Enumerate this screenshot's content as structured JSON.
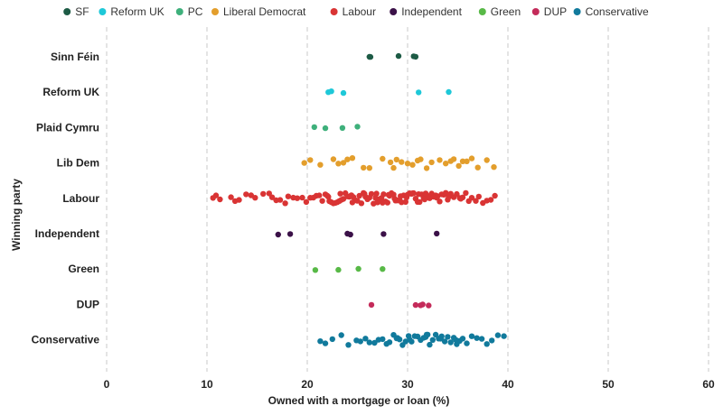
{
  "chart_data": {
    "type": "scatter",
    "xlabel": "Owned with a mortgage or loan (%)",
    "ylabel": "Winning party",
    "xlim": [
      0,
      60
    ],
    "xticks": [
      0,
      10,
      20,
      30,
      40,
      50,
      60
    ],
    "grid": "vertical dashed",
    "legend_position": "top",
    "categories": [
      "Sinn Féin",
      "Reform UK",
      "Plaid Cymru",
      "Lib Dem",
      "Labour",
      "Independent",
      "Green",
      "DUP",
      "Conservative"
    ],
    "series": [
      {
        "name": "SF",
        "category": "Sinn Féin",
        "color": "#1d5b45",
        "values": [
          26.2,
          26.3,
          29.1,
          30.6,
          30.8
        ]
      },
      {
        "name": "Reform UK",
        "category": "Reform UK",
        "color": "#1ec8d8",
        "values": [
          22.1,
          22.4,
          23.6,
          31.1,
          34.1
        ]
      },
      {
        "name": "PC",
        "category": "Plaid Cymru",
        "color": "#3eb07b",
        "values": [
          20.7,
          21.8,
          23.5,
          25.0
        ]
      },
      {
        "name": "Liberal Democrat",
        "category": "Lib Dem",
        "color": "#e39e2c",
        "values": [
          19.7,
          20.3,
          21.3,
          22.6,
          23.1,
          23.6,
          24.0,
          24.5,
          25.6,
          26.2,
          27.5,
          28.3,
          28.6,
          28.9,
          29.4,
          30.0,
          30.5,
          31.0,
          31.3,
          31.9,
          32.4,
          33.2,
          33.8,
          34.3,
          34.6,
          35.1,
          35.5,
          35.9,
          36.4,
          37.0,
          37.9,
          38.6
        ]
      },
      {
        "name": "Labour",
        "category": "Labour",
        "color": "#d93434",
        "values": [
          10.6,
          10.9,
          11.3,
          12.4,
          12.8,
          13.2,
          13.9,
          14.4,
          14.8,
          15.6,
          16.2,
          16.5,
          16.9,
          17.3,
          17.8,
          18.1,
          18.6,
          19.0,
          19.5,
          19.9,
          20.3,
          20.6,
          20.9,
          21.2,
          21.5,
          21.8,
          22.0,
          22.2,
          22.4,
          22.6,
          22.8,
          23.0,
          23.2,
          23.4,
          23.6,
          23.8,
          24.0,
          24.2,
          24.4,
          24.6,
          24.8,
          25.0,
          25.2,
          25.4,
          25.6,
          25.8,
          26.0,
          26.2,
          26.4,
          26.6,
          26.8,
          27.0,
          27.2,
          27.4,
          27.6,
          27.8,
          28.0,
          28.2,
          28.4,
          28.6,
          28.8,
          29.0,
          29.2,
          29.4,
          29.6,
          29.8,
          30.0,
          30.2,
          30.4,
          30.6,
          30.8,
          31.0,
          31.2,
          31.4,
          31.6,
          31.8,
          32.0,
          32.2,
          32.4,
          32.6,
          32.8,
          33.0,
          33.2,
          33.4,
          33.6,
          33.8,
          34.0,
          34.3,
          34.6,
          34.9,
          35.2,
          35.5,
          35.8,
          36.1,
          36.4,
          36.8,
          37.1,
          37.5,
          37.9,
          38.3,
          38.7,
          22.1,
          23.3,
          24.5,
          25.7,
          26.9,
          28.1,
          29.3,
          30.5,
          31.7,
          32.9,
          34.1,
          35.3,
          27.5,
          28.7,
          29.9,
          31.1
        ]
      },
      {
        "name": "Independent",
        "category": "Independent",
        "color": "#3b1148",
        "values": [
          17.1,
          18.3,
          24.0,
          24.3,
          27.6,
          32.9
        ]
      },
      {
        "name": "Green",
        "category": "Green",
        "color": "#58b947",
        "values": [
          20.8,
          23.1,
          25.1,
          27.5
        ]
      },
      {
        "name": "DUP",
        "category": "DUP",
        "color": "#c42b5a",
        "values": [
          26.4,
          30.8,
          31.3,
          31.5,
          32.1
        ]
      },
      {
        "name": "Conservative",
        "category": "Conservative",
        "color": "#117a9c",
        "values": [
          21.3,
          21.8,
          22.5,
          23.4,
          24.1,
          24.9,
          25.3,
          25.8,
          26.2,
          26.7,
          27.1,
          27.5,
          27.9,
          28.2,
          28.6,
          28.9,
          29.2,
          29.5,
          29.8,
          30.1,
          30.4,
          30.7,
          31.0,
          31.3,
          31.6,
          31.9,
          32.2,
          32.5,
          32.8,
          33.1,
          33.4,
          33.7,
          34.0,
          34.3,
          34.6,
          34.9,
          35.2,
          35.5,
          35.9,
          36.4,
          36.9,
          37.4,
          37.9,
          38.4,
          39.0,
          39.6,
          30.2,
          31.8,
          33.3,
          34.8,
          29.0,
          32.0
        ]
      }
    ]
  }
}
